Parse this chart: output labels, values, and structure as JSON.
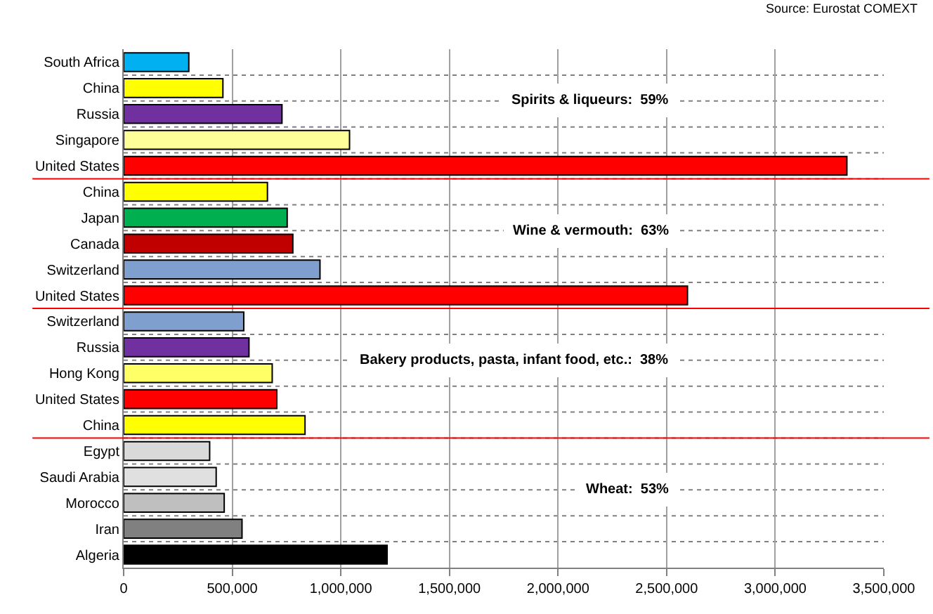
{
  "chart_data": {
    "type": "bar",
    "orientation": "horizontal",
    "categories": [
      "South Africa",
      "China",
      "Russia",
      "Singapore",
      "United States",
      "China",
      "Japan",
      "Canada",
      "Switzerland",
      "United States",
      "Switzerland",
      "Russia",
      "Hong Kong",
      "United States",
      "China",
      "Egypt",
      "Saudi Arabia",
      "Morocco",
      "Iran",
      "Algeria"
    ],
    "values": [
      300000,
      457000,
      729000,
      1040000,
      3330000,
      662000,
      753000,
      779000,
      904000,
      2596000,
      553000,
      577000,
      684000,
      705000,
      835000,
      396000,
      426000,
      463000,
      545000,
      1213000
    ],
    "colors": [
      "#00b0f0",
      "#ffff00",
      "#7030a0",
      "#ffff99",
      "#ff0000",
      "#ffff00",
      "#00b050",
      "#c00000",
      "#7f9fcf",
      "#ff0000",
      "#7f9fcf",
      "#7030a0",
      "#ffff66",
      "#ff0000",
      "#ffff00",
      "#d9d9d9",
      "#e0e0e0",
      "#bfbfbf",
      "#808080",
      "#000000"
    ],
    "xlim": [
      0,
      3500000
    ],
    "xticks": [
      {
        "value": 0,
        "label": "0"
      },
      {
        "value": 500000,
        "label": "500,000"
      },
      {
        "value": 1000000,
        "label": "1,000,000"
      },
      {
        "value": 1500000,
        "label": "1,500,000"
      },
      {
        "value": 2000000,
        "label": "2,000,000"
      },
      {
        "value": 2500000,
        "label": "2,500,000"
      },
      {
        "value": 3000000,
        "label": "3,000,000"
      },
      {
        "value": 3500000,
        "label": "3,500,000"
      }
    ],
    "grid": true,
    "annotations": [
      "Spirits & liqueurs:  59%",
      "Wine & vermouth:  63%",
      "Bakery products, pasta, infant food, etc.:  38%",
      "Wheat:  53%",
      "Source: Eurostat COMEXT"
    ]
  }
}
